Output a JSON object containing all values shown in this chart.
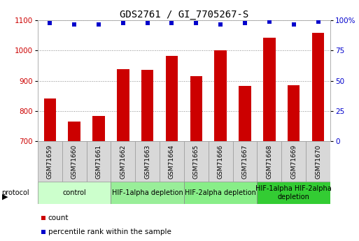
{
  "title": "GDS2761 / GI_7705267-S",
  "samples": [
    "GSM71659",
    "GSM71660",
    "GSM71661",
    "GSM71662",
    "GSM71663",
    "GSM71664",
    "GSM71665",
    "GSM71666",
    "GSM71667",
    "GSM71668",
    "GSM71669",
    "GSM71670"
  ],
  "counts": [
    840,
    765,
    782,
    938,
    937,
    983,
    915,
    1002,
    882,
    1042,
    885,
    1058
  ],
  "percentile_ranks": [
    98,
    97,
    97,
    98,
    98,
    98,
    98,
    97,
    98,
    99,
    97,
    99
  ],
  "ylim_left": [
    700,
    1100
  ],
  "ylim_right": [
    0,
    100
  ],
  "yticks_left": [
    700,
    800,
    900,
    1000,
    1100
  ],
  "yticks_right": [
    0,
    25,
    50,
    75,
    100
  ],
  "bar_color": "#cc0000",
  "dot_color": "#0000cc",
  "bar_width": 0.5,
  "protocols": [
    {
      "label": "control",
      "start": 0,
      "end": 3,
      "color": "#ccffcc"
    },
    {
      "label": "HIF-1alpha depletion",
      "start": 3,
      "end": 6,
      "color": "#99ee99"
    },
    {
      "label": "HIF-2alpha depletion",
      "start": 6,
      "end": 9,
      "color": "#88ee88"
    },
    {
      "label": "HIF-1alpha HIF-2alpha\ndepletion",
      "start": 9,
      "end": 12,
      "color": "#33cc33"
    }
  ],
  "background_color": "#ffffff",
  "grid_color": "#888888",
  "tick_label_color_left": "#cc0000",
  "tick_label_color_right": "#0000cc",
  "title_fontsize": 10,
  "axis_fontsize": 7.5,
  "sample_fontsize": 6.5,
  "protocol_fontsize": 7,
  "legend_fontsize": 7.5,
  "sample_box_color": "#d8d8d8",
  "sample_box_edge": "#999999"
}
